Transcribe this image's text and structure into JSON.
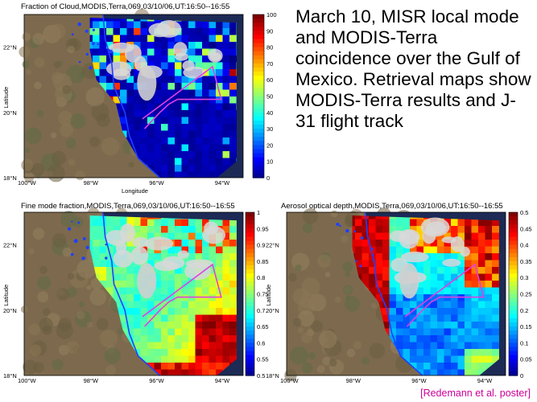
{
  "headline": "March 10, MISR local mode and MODIS-Terra coincidence over the Gulf of Mexico. Retrieval maps show MODIS-Terra results and J-31 flight track",
  "credit": "[Redemann et al. poster]",
  "map_labels": {
    "xticks": [
      "100°W",
      "98°W",
      "96°W",
      "94°W"
    ],
    "yticks": [
      "18°N",
      "20°N",
      "22°N"
    ],
    "xlabel": "Longitude",
    "ylabel": "Latitude"
  },
  "panels": [
    {
      "id": "cloud-fraction",
      "title": "Fraction of Cloud,MODIS,Terra,069,03/10/06,UT:16:50--16:55",
      "colorbar_ticks": [
        "100",
        "90",
        "80",
        "70",
        "60",
        "50",
        "40",
        "30",
        "20",
        "10",
        "0"
      ]
    },
    {
      "id": "fine-mode-fraction",
      "title": "Fine mode fraction,MODIS,Terra,069,03/10/06,UT:16:50--16:55",
      "colorbar_ticks": [
        "1",
        "0.95",
        "0.9",
        "0.85",
        "0.8",
        "0.75",
        "0.7",
        "0.65",
        "0.6",
        "0.55",
        "0.5"
      ]
    },
    {
      "id": "aerosol-optical-depth",
      "title": "Aerosol optical depth,MODIS,Terra,069,03/10/06,UT:16:50--16:55",
      "colorbar_ticks": [
        "0.5",
        "0.45",
        "0.4",
        "0.35",
        "0.3",
        "0.25",
        "0.2",
        "0.15",
        "0.1",
        "0.05",
        "0"
      ]
    }
  ],
  "colors": {
    "flight_track": "#e040e0",
    "coastline": "#2040ff",
    "credit": "#cc0099"
  }
}
